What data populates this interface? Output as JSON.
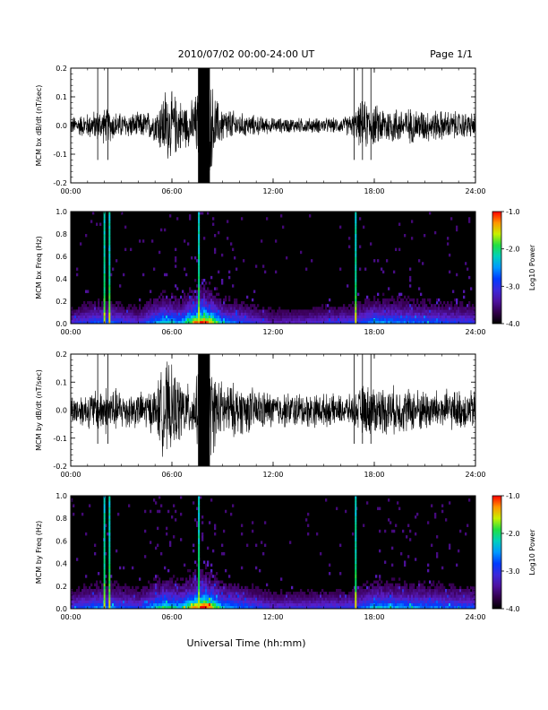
{
  "header": {
    "title": "2010/07/02  00:00-24:00 UT",
    "page": "Page 1/1"
  },
  "x_axis": {
    "label": "Universal Time (hh:mm)",
    "tick_labels": [
      "00:00",
      "06:00",
      "12:00",
      "18:00",
      "24:00"
    ]
  },
  "chart_data": [
    {
      "type": "line",
      "ylabel": "MCM bx dB/dt (nT/sec)",
      "xlim": [
        0,
        24
      ],
      "ylim": [
        -0.2,
        0.2
      ],
      "yticks": [
        "-0.2",
        "-0.1",
        "0.0",
        "0.1",
        "0.2"
      ],
      "grid": false,
      "envelope_note": "high-cadence dB/dt trace",
      "envelope_hours": [
        0,
        1,
        2,
        3,
        4,
        5,
        5.6,
        6.2,
        7,
        7.4,
        7.8,
        8.2,
        8.8,
        10,
        12,
        14,
        16,
        16.8,
        17.3,
        18,
        20,
        22,
        24
      ],
      "envelope_amp": [
        0.035,
        0.05,
        0.07,
        0.05,
        0.05,
        0.06,
        0.15,
        0.12,
        0.08,
        0.12,
        0.2,
        0.2,
        0.08,
        0.05,
        0.03,
        0.03,
        0.03,
        0.05,
        0.1,
        0.08,
        0.07,
        0.06,
        0.05
      ]
    },
    {
      "type": "heatmap",
      "ylabel": "MCM bx Freq (Hz)",
      "xlim": [
        0,
        24
      ],
      "ylim": [
        0.0,
        1.0
      ],
      "yticks": [
        "0.0",
        "0.2",
        "0.4",
        "0.6",
        "0.8",
        "1.0"
      ],
      "colorbar": {
        "label": "Log10 Power",
        "range": [
          -4.0,
          -1.0
        ],
        "ticks": [
          "-1.0",
          "-2.0",
          "-3.0",
          "-4.0"
        ]
      },
      "bright_lines_hours": [
        2.0,
        2.3,
        7.6,
        16.9
      ],
      "activity_hours": [
        0,
        2,
        4,
        5.5,
        6.5,
        7.5,
        8,
        9,
        12,
        16.9,
        18,
        20,
        22,
        24
      ],
      "activity_level": [
        0.25,
        0.4,
        0.25,
        0.55,
        0.45,
        0.85,
        0.95,
        0.45,
        0.2,
        0.3,
        0.45,
        0.4,
        0.35,
        0.3
      ]
    },
    {
      "type": "line",
      "ylabel": "MCM by dB/dt (nT/sec)",
      "xlim": [
        0,
        24
      ],
      "ylim": [
        -0.2,
        0.2
      ],
      "yticks": [
        "-0.2",
        "-0.1",
        "0.0",
        "0.1",
        "0.2"
      ],
      "grid": false,
      "envelope_hours": [
        0,
        1,
        2,
        3,
        4,
        5,
        5.6,
        6.2,
        7,
        7.4,
        7.8,
        8.2,
        8.8,
        10,
        12,
        14,
        16,
        16.8,
        17.3,
        18,
        20,
        22,
        24
      ],
      "envelope_amp": [
        0.06,
        0.07,
        0.1,
        0.08,
        0.07,
        0.09,
        0.2,
        0.15,
        0.1,
        0.12,
        0.2,
        0.2,
        0.12,
        0.1,
        0.07,
        0.07,
        0.06,
        0.06,
        0.1,
        0.1,
        0.09,
        0.08,
        0.08
      ]
    },
    {
      "type": "heatmap",
      "ylabel": "MCM by Freq (Hz)",
      "xlim": [
        0,
        24
      ],
      "ylim": [
        0.0,
        1.0
      ],
      "yticks": [
        "0.0",
        "0.2",
        "0.4",
        "0.6",
        "0.8",
        "1.0"
      ],
      "colorbar": {
        "label": "Log10 Power",
        "range": [
          -4.0,
          -1.0
        ],
        "ticks": [
          "-1.0",
          "-2.0",
          "-3.0",
          "-4.0"
        ]
      },
      "bright_lines_hours": [
        2.0,
        2.3,
        7.6,
        16.9
      ],
      "activity_hours": [
        0,
        2,
        4,
        5.5,
        6.5,
        7.5,
        8,
        9,
        12,
        16.9,
        18,
        20,
        22,
        24
      ],
      "activity_level": [
        0.3,
        0.45,
        0.3,
        0.6,
        0.5,
        0.85,
        0.95,
        0.5,
        0.25,
        0.3,
        0.5,
        0.45,
        0.4,
        0.35
      ]
    }
  ]
}
